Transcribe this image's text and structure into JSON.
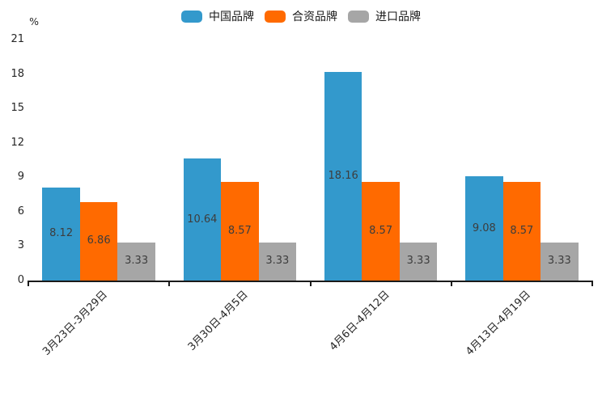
{
  "chart_data": {
    "type": "bar",
    "title": "",
    "unit_label": "%",
    "categories": [
      "3月23日-3月29日",
      "3月30日-4月5日",
      "4月6日-4月12日",
      "4月13日-4月19日"
    ],
    "series": [
      {
        "name": "中国品牌",
        "color": "#3399cc",
        "values": [
          8.12,
          10.64,
          18.16,
          9.08
        ]
      },
      {
        "name": "合资品牌",
        "color": "#ff6a00",
        "values": [
          6.86,
          8.57,
          8.57,
          8.57
        ]
      },
      {
        "name": "进口品牌",
        "color": "#a6a6a6",
        "values": [
          3.33,
          3.33,
          3.33,
          3.33
        ]
      }
    ],
    "bar_labels_visible": true,
    "bar_label_decimals": 2,
    "y_ticks": [
      0,
      3,
      6,
      9,
      12,
      15,
      18,
      21
    ],
    "ylim": [
      0,
      21
    ],
    "grid": false,
    "legend_position": "top-center",
    "colors": {
      "axis": "#1a1a1a",
      "tick_text": "#262626",
      "bar_label_text": "#3d3d3d",
      "background": "#ffffff"
    }
  }
}
